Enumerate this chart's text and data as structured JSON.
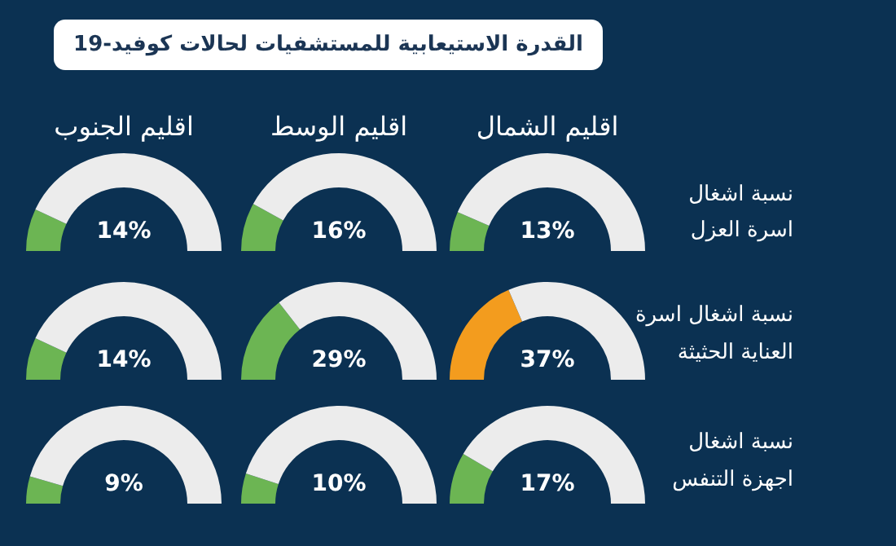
{
  "chart_data": [
    {
      "type": "other",
      "title": "القدرة الاستيعابية للمستشفيات لحالات كوفيد-19"
    },
    {
      "type": "donut",
      "title": "اقليم الشمال",
      "categories": [
        null,
        null
      ],
      "values": [
        13,
        87
      ],
      "colors": [
        "#6cb553",
        "#ececec"
      ],
      "annotations": [
        "13%",
        "نسبة اشغال",
        "اسرة العزل"
      ]
    },
    {
      "type": "donut",
      "title": "اقليم الوسط",
      "categories": [
        null,
        null
      ],
      "values": [
        16,
        84
      ],
      "colors": [
        "#6cb553",
        "#ececec"
      ],
      "annotations": [
        "16%"
      ]
    },
    {
      "type": "donut",
      "title": "اقليم الجنوب",
      "categories": [
        null,
        null
      ],
      "values": [
        14,
        86
      ],
      "colors": [
        "#6cb553",
        "#ececec"
      ],
      "annotations": [
        "14%"
      ]
    },
    {
      "type": "donut",
      "categories": [
        null,
        null
      ],
      "values": [
        37,
        63
      ],
      "colors": [
        "#f39c1e",
        "#ececec"
      ],
      "annotations": [
        "37%",
        "نسبة اشغال اسرة",
        "العناية الحثيثة"
      ]
    },
    {
      "type": "donut",
      "categories": [
        null,
        null
      ],
      "values": [
        29,
        71
      ],
      "colors": [
        "#6cb553",
        "#ececec"
      ],
      "annotations": [
        "29%"
      ]
    },
    {
      "type": "donut",
      "categories": [
        null,
        null
      ],
      "values": [
        14,
        86
      ],
      "colors": [
        "#6cb553",
        "#ececec"
      ],
      "annotations": [
        "14%"
      ]
    },
    {
      "type": "donut",
      "categories": [
        null,
        null
      ],
      "values": [
        17,
        83
      ],
      "colors": [
        "#6cb553",
        "#ececec"
      ],
      "annotations": [
        "17%",
        "نسبة اشغال",
        "اجهزة التنفس"
      ]
    },
    {
      "type": "donut",
      "categories": [
        null,
        null
      ],
      "values": [
        10,
        90
      ],
      "colors": [
        "#6cb553",
        "#ececec"
      ],
      "annotations": [
        "10%"
      ]
    },
    {
      "type": "donut",
      "categories": [
        null,
        null
      ],
      "values": [
        9,
        91
      ],
      "colors": [
        "#6cb553",
        "#ececec"
      ],
      "annotations": [
        "9%"
      ]
    }
  ]
}
